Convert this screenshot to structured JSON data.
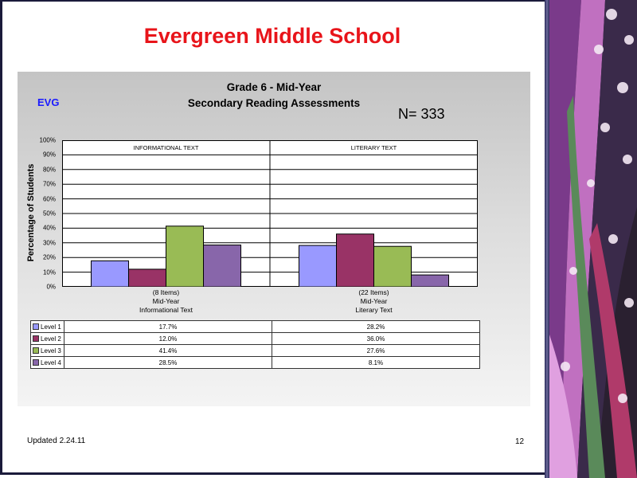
{
  "slide": {
    "title": "Evergreen Middle School",
    "footer_left": "Updated  2.24.11",
    "page_number": "12"
  },
  "chart_data": {
    "type": "bar",
    "title": "Grade 6 - Mid-Year",
    "subtitle": "Secondary Reading Assessments",
    "school_code": "EVG",
    "n_label": "N=  333",
    "ylabel": "Percentage of Students",
    "ylim": [
      0,
      100
    ],
    "yticks": [
      "0%",
      "10%",
      "20%",
      "30%",
      "40%",
      "50%",
      "60%",
      "70%",
      "80%",
      "90%",
      "100%"
    ],
    "grid": true,
    "legend": "table-below",
    "headers": [
      "INFORMATIONAL TEXT",
      "LITERARY TEXT"
    ],
    "categories": [
      [
        "(8 Items)",
        "Mid-Year",
        "Informational Text"
      ],
      [
        "(22 Items)",
        "Mid-Year",
        "Literary Text"
      ]
    ],
    "series": [
      {
        "name": "Level 1",
        "color": "#9999ff",
        "values": [
          17.7,
          28.2
        ],
        "labels": [
          "17.7%",
          "28.2%"
        ]
      },
      {
        "name": "Level 2",
        "color": "#993366",
        "values": [
          12.0,
          36.0
        ],
        "labels": [
          "12.0%",
          "36.0%"
        ]
      },
      {
        "name": "Level 3",
        "color": "#99bb55",
        "values": [
          41.4,
          27.6
        ],
        "labels": [
          "41.4%",
          "27.6%"
        ]
      },
      {
        "name": "Level 4",
        "color": "#8866aa",
        "values": [
          28.5,
          8.1
        ],
        "labels": [
          "28.5%",
          "8.1%"
        ]
      }
    ]
  }
}
